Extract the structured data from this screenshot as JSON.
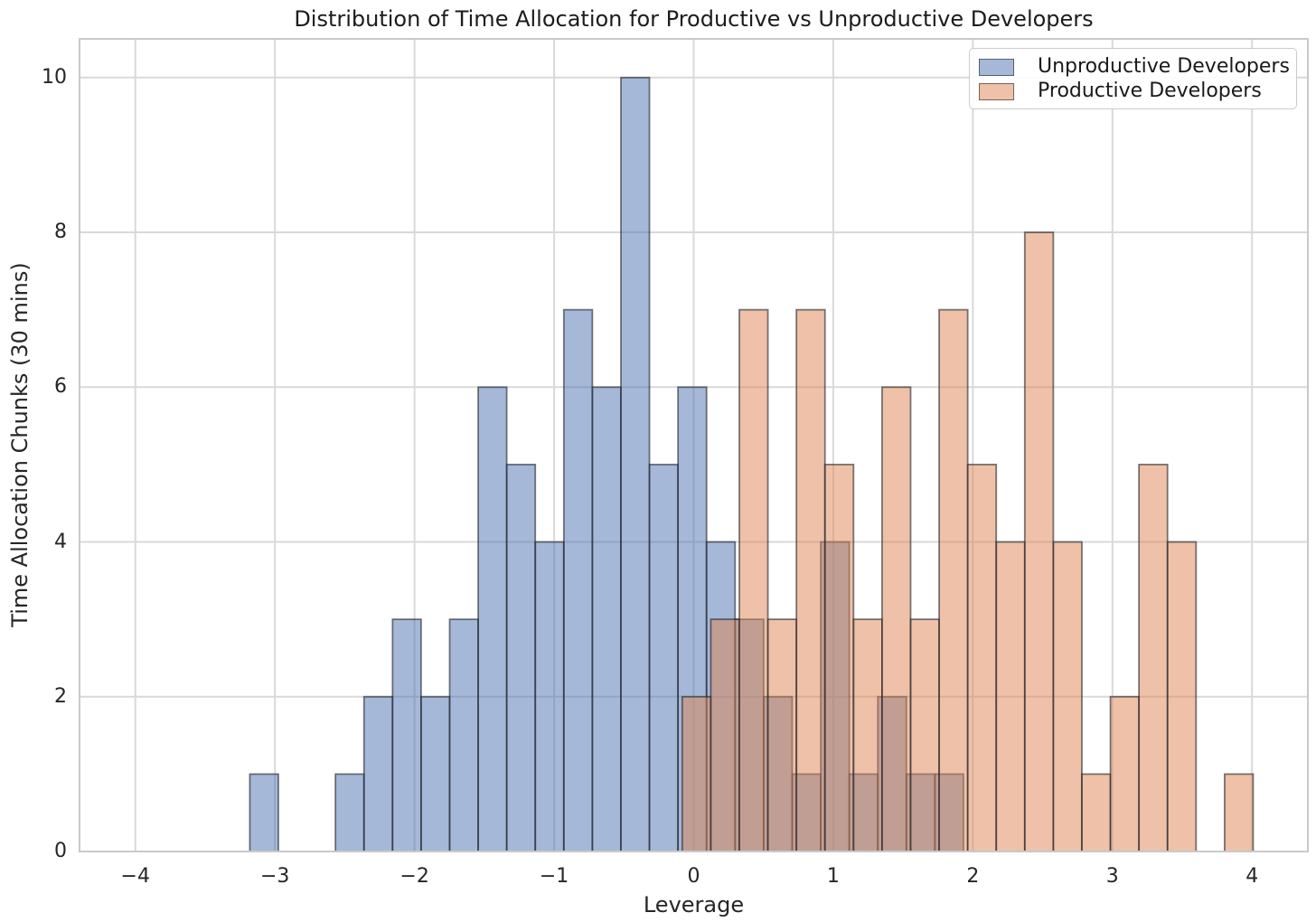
{
  "figure": {
    "background": "#ffffff",
    "text_color": "#262626",
    "grid_color": "#d9d9d9",
    "frame_color": "#c9c9c9",
    "bar_edge_color": "rgba(33,36,44,0.6)"
  },
  "chart_data": {
    "type": "histogram",
    "title": "Distribution of Time Allocation for Productive vs Unproductive Developers",
    "xlabel": "Leverage",
    "ylabel": "Time Allocation Chunks (30 mins)",
    "xlim": [
      -4.4,
      4.4
    ],
    "ylim": [
      0,
      10.5
    ],
    "xticks": [
      -4,
      -3,
      -2,
      -1,
      0,
      1,
      2,
      3,
      4
    ],
    "xtick_labels": [
      "−4",
      "−3",
      "−2",
      "−1",
      "0",
      "1",
      "2",
      "3",
      "4"
    ],
    "yticks": [
      0,
      2,
      4,
      6,
      8,
      10
    ],
    "ytick_labels": [
      "0",
      "2",
      "4",
      "6",
      "8",
      "10"
    ],
    "grid": true,
    "legend_position": "upper right",
    "fill_alpha": 0.5,
    "bin_width": 0.2045,
    "series": [
      {
        "name": "Unproductive Developers",
        "color": "#4c72b0",
        "bin_start": -3.18,
        "counts": [
          1,
          0,
          0,
          1,
          2,
          3,
          2,
          3,
          6,
          5,
          4,
          7,
          6,
          10,
          5,
          6,
          4,
          3,
          2,
          1,
          4,
          1,
          2,
          1,
          1
        ]
      },
      {
        "name": "Productive Developers",
        "color": "#dd8452",
        "bin_start": -0.082,
        "counts": [
          2,
          3,
          7,
          3,
          7,
          5,
          3,
          6,
          3,
          7,
          5,
          4,
          8,
          4,
          1,
          2,
          5,
          4,
          0,
          1
        ]
      }
    ]
  }
}
